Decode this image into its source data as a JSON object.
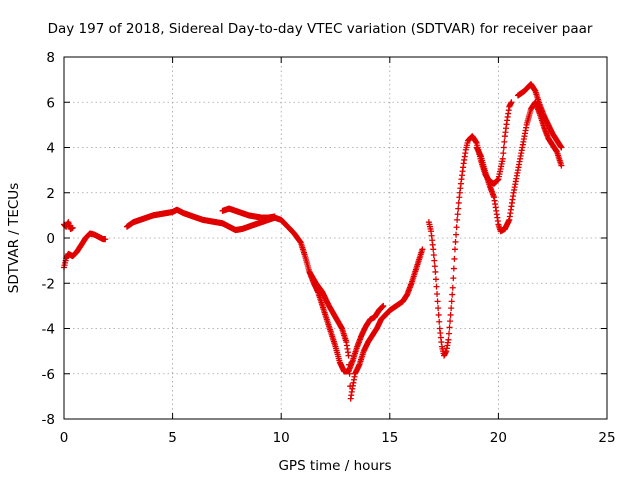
{
  "chart_data": {
    "type": "scatter",
    "title": "Day 197 of 2018, Sidereal Day-to-day VTEC variation (SDTVAR) for receiver paar",
    "xlabel": "GPS time / hours",
    "ylabel": "SDTVAR / TECUs",
    "xlim": [
      0,
      25
    ],
    "ylim": [
      -8,
      8
    ],
    "xticks": [
      0,
      5,
      10,
      15,
      20,
      25
    ],
    "yticks": [
      -8,
      -6,
      -4,
      -2,
      0,
      2,
      4,
      6,
      8
    ],
    "grid": true,
    "marker": "+",
    "color": "#e00000",
    "series": [
      {
        "name": "SDTVAR",
        "segments": [
          [
            [
              0.0,
              0.6
            ],
            [
              0.1,
              0.5
            ],
            [
              0.2,
              0.7
            ],
            [
              0.3,
              0.4
            ],
            [
              0.4,
              0.45
            ]
          ],
          [
            [
              0.0,
              -1.3
            ],
            [
              0.1,
              -0.9
            ],
            [
              0.2,
              -0.7
            ],
            [
              0.4,
              -0.8
            ],
            [
              0.6,
              -0.6
            ],
            [
              0.8,
              -0.3
            ],
            [
              1.0,
              0.0
            ],
            [
              1.2,
              0.2
            ],
            [
              1.4,
              0.15
            ],
            [
              1.6,
              0.05
            ],
            [
              1.8,
              -0.05
            ],
            [
              1.9,
              -0.05
            ]
          ],
          [
            [
              2.9,
              0.5
            ],
            [
              3.2,
              0.7
            ],
            [
              3.5,
              0.8
            ],
            [
              3.8,
              0.9
            ],
            [
              4.1,
              1.0
            ],
            [
              4.4,
              1.05
            ],
            [
              4.7,
              1.1
            ],
            [
              5.0,
              1.15
            ],
            [
              5.2,
              1.25
            ],
            [
              5.5,
              1.1
            ],
            [
              5.8,
              1.0
            ],
            [
              6.1,
              0.9
            ],
            [
              6.4,
              0.8
            ],
            [
              6.7,
              0.75
            ],
            [
              7.0,
              0.7
            ],
            [
              7.3,
              0.65
            ],
            [
              7.6,
              0.5
            ],
            [
              7.9,
              0.35
            ],
            [
              8.2,
              0.4
            ],
            [
              8.5,
              0.5
            ],
            [
              8.8,
              0.6
            ],
            [
              9.1,
              0.7
            ],
            [
              9.4,
              0.8
            ],
            [
              9.7,
              0.9
            ],
            [
              10.0,
              0.8
            ],
            [
              10.3,
              0.5
            ],
            [
              10.6,
              0.2
            ],
            [
              10.9,
              -0.2
            ],
            [
              11.1,
              -0.8
            ],
            [
              11.3,
              -1.5
            ],
            [
              11.5,
              -2.0
            ],
            [
              11.7,
              -2.4
            ],
            [
              11.9,
              -3.0
            ],
            [
              12.1,
              -3.6
            ],
            [
              12.3,
              -4.2
            ],
            [
              12.5,
              -4.8
            ],
            [
              12.7,
              -5.5
            ],
            [
              12.9,
              -5.9
            ],
            [
              13.1,
              -5.9
            ],
            [
              13.3,
              -5.4
            ],
            [
              13.5,
              -4.8
            ],
            [
              13.7,
              -4.3
            ],
            [
              13.9,
              -3.9
            ],
            [
              14.1,
              -3.6
            ],
            [
              14.3,
              -3.5
            ],
            [
              14.5,
              -3.2
            ],
            [
              14.7,
              -3.0
            ]
          ],
          [
            [
              7.3,
              1.2
            ],
            [
              7.6,
              1.3
            ],
            [
              7.9,
              1.2
            ],
            [
              8.2,
              1.1
            ],
            [
              8.5,
              1.0
            ],
            [
              8.8,
              0.95
            ],
            [
              9.1,
              0.9
            ],
            [
              9.4,
              0.9
            ],
            [
              9.7,
              0.95
            ]
          ],
          [
            [
              11.3,
              -1.5
            ],
            [
              11.6,
              -2.0
            ],
            [
              11.9,
              -2.4
            ],
            [
              12.2,
              -3.0
            ],
            [
              12.5,
              -3.5
            ],
            [
              12.8,
              -4.0
            ],
            [
              13.0,
              -4.6
            ],
            [
              13.1,
              -5.2
            ],
            [
              13.15,
              -6.0
            ],
            [
              13.2,
              -7.1
            ],
            [
              13.25,
              -6.8
            ],
            [
              13.4,
              -6.0
            ],
            [
              13.6,
              -5.6
            ],
            [
              13.8,
              -5.0
            ],
            [
              14.0,
              -4.6
            ],
            [
              14.2,
              -4.3
            ],
            [
              14.4,
              -4.0
            ],
            [
              14.6,
              -3.6
            ],
            [
              14.8,
              -3.4
            ],
            [
              15.0,
              -3.2
            ],
            [
              15.3,
              -3.0
            ],
            [
              15.6,
              -2.8
            ],
            [
              15.8,
              -2.5
            ],
            [
              16.0,
              -2.0
            ],
            [
              16.2,
              -1.4
            ],
            [
              16.4,
              -0.8
            ],
            [
              16.5,
              -0.5
            ]
          ],
          [
            [
              16.8,
              0.7
            ],
            [
              16.9,
              0.3
            ],
            [
              17.0,
              -0.5
            ],
            [
              17.1,
              -1.5
            ],
            [
              17.2,
              -2.8
            ],
            [
              17.3,
              -4.0
            ],
            [
              17.4,
              -4.8
            ],
            [
              17.5,
              -5.2
            ],
            [
              17.6,
              -5.0
            ],
            [
              17.7,
              -4.5
            ],
            [
              17.8,
              -3.4
            ],
            [
              17.9,
              -2.2
            ],
            [
              18.0,
              -0.5
            ],
            [
              18.1,
              0.8
            ],
            [
              18.2,
              1.8
            ],
            [
              18.3,
              2.6
            ],
            [
              18.4,
              3.3
            ],
            [
              18.5,
              3.9
            ],
            [
              18.6,
              4.3
            ],
            [
              18.8,
              4.5
            ],
            [
              19.0,
              4.2
            ],
            [
              19.2,
              3.4
            ],
            [
              19.4,
              2.8
            ],
            [
              19.6,
              2.5
            ],
            [
              19.8,
              2.4
            ],
            [
              20.0,
              2.6
            ],
            [
              20.2,
              3.5
            ],
            [
              20.3,
              4.5
            ],
            [
              20.4,
              5.2
            ],
            [
              20.5,
              5.8
            ],
            [
              20.6,
              6.0
            ]
          ],
          [
            [
              19.0,
              4.0
            ],
            [
              19.2,
              3.6
            ],
            [
              19.4,
              2.9
            ],
            [
              19.6,
              2.3
            ],
            [
              19.8,
              1.8
            ],
            [
              19.9,
              1.2
            ],
            [
              20.0,
              0.6
            ],
            [
              20.1,
              0.3
            ],
            [
              20.3,
              0.4
            ],
            [
              20.5,
              0.8
            ],
            [
              20.7,
              2.0
            ],
            [
              20.9,
              3.0
            ],
            [
              21.1,
              4.0
            ],
            [
              21.3,
              5.0
            ],
            [
              21.5,
              5.7
            ],
            [
              21.7,
              6.0
            ],
            [
              21.9,
              5.5
            ],
            [
              22.1,
              4.9
            ],
            [
              22.3,
              4.4
            ],
            [
              22.5,
              4.1
            ],
            [
              22.7,
              3.8
            ],
            [
              22.9,
              3.2
            ]
          ],
          [
            [
              20.9,
              6.3
            ],
            [
              21.2,
              6.5
            ],
            [
              21.5,
              6.8
            ],
            [
              21.7,
              6.5
            ],
            [
              21.9,
              5.9
            ],
            [
              22.1,
              5.4
            ],
            [
              22.3,
              5.0
            ],
            [
              22.5,
              4.6
            ],
            [
              22.7,
              4.3
            ],
            [
              22.9,
              4.0
            ]
          ]
        ]
      }
    ]
  }
}
